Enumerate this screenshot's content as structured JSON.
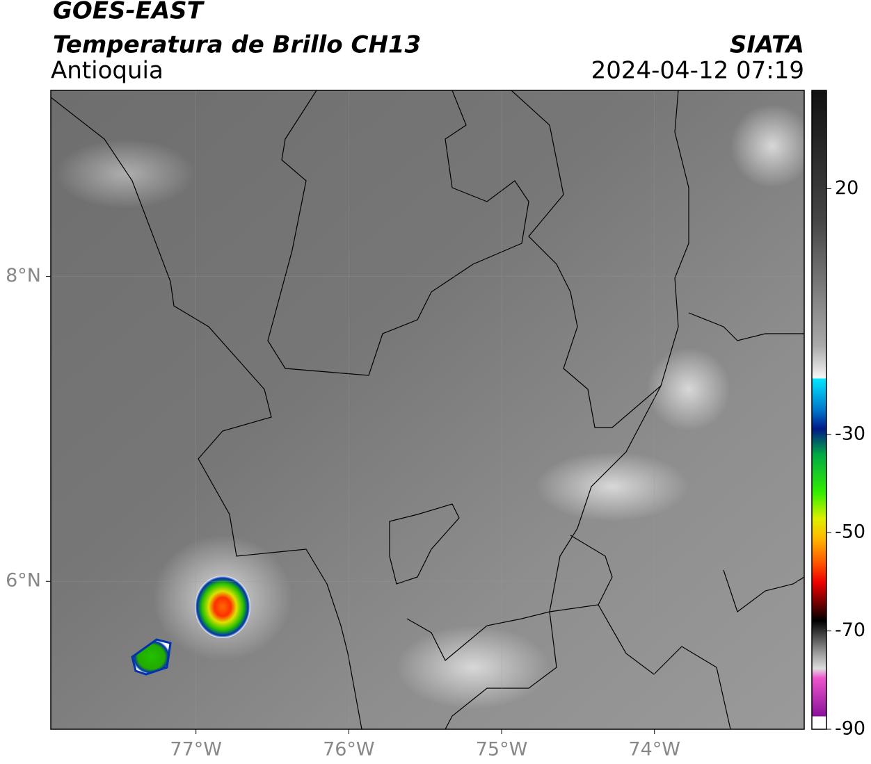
{
  "header": {
    "title": "GOES-EAST",
    "subtitle": "Temperatura de Brillo CH13",
    "region": "Antioquia",
    "source": "SIATA",
    "datetime": "2024-04-12 07:19"
  },
  "map": {
    "lonlim": [
      -77.95,
      -73.02
    ],
    "latlim": [
      5.03,
      9.22
    ],
    "lonticks": [
      {
        "value": -77,
        "label": "77°W"
      },
      {
        "value": -76,
        "label": "76°W"
      },
      {
        "value": -75,
        "label": "75°W"
      },
      {
        "value": -74,
        "label": "74°W"
      }
    ],
    "latticks": [
      {
        "value": 8,
        "label": "8°N"
      },
      {
        "value": 6,
        "label": "6°N"
      }
    ]
  },
  "colorbar": {
    "range": [
      -90,
      40
    ],
    "ticks": [
      20,
      -30,
      -50,
      -70,
      -90
    ]
  }
}
